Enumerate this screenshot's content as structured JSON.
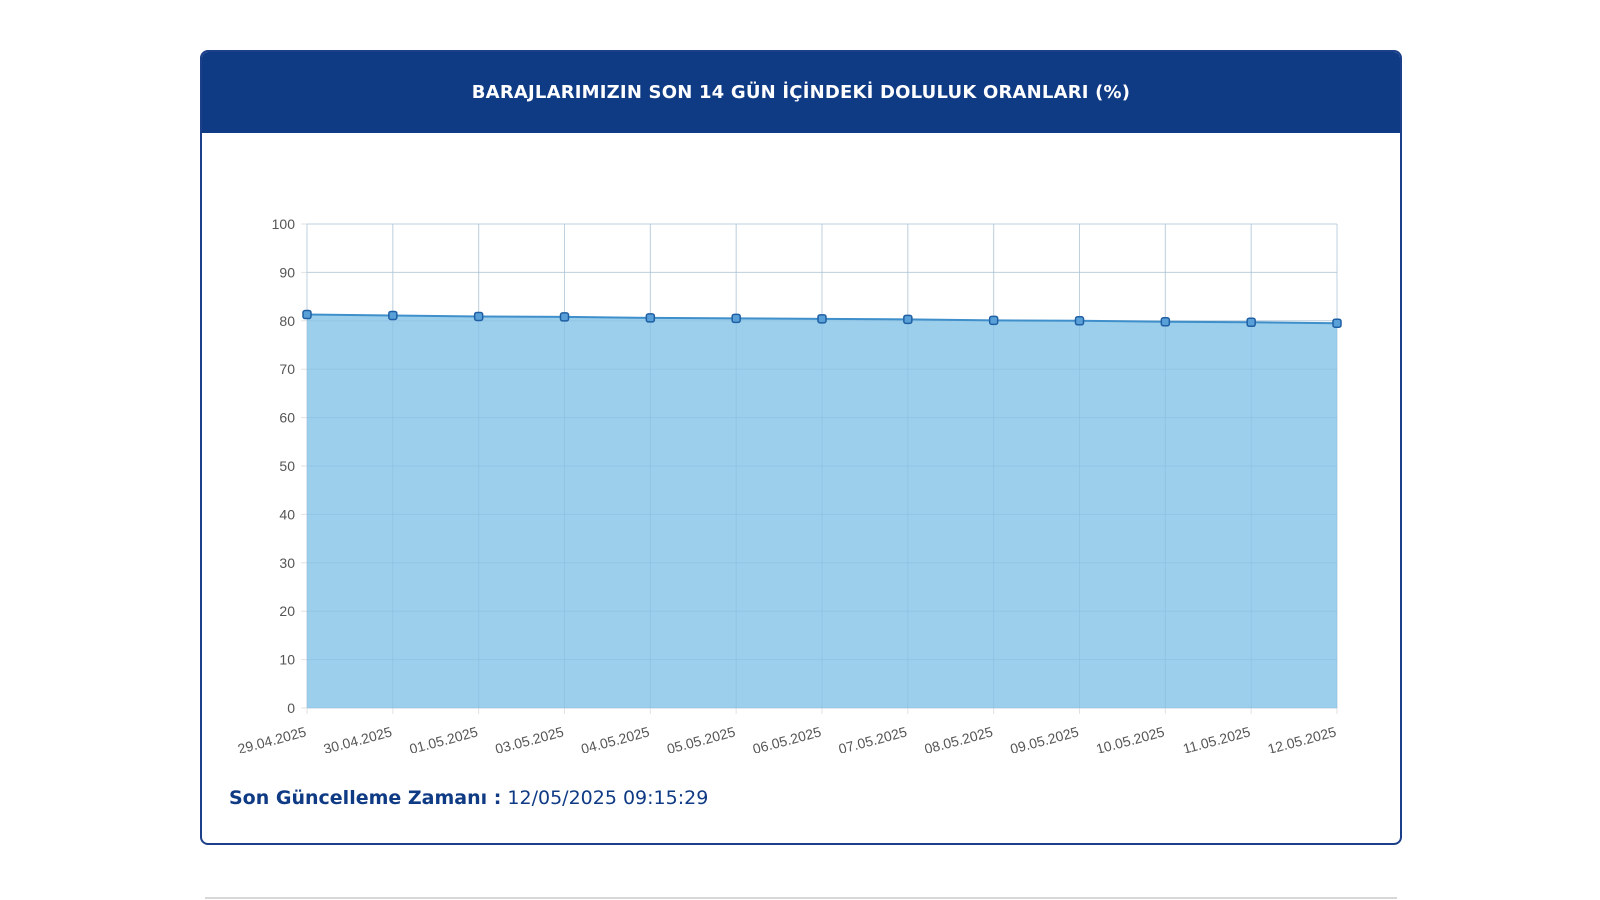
{
  "card": {
    "title": "BARAJLARIMIZIN SON 14 GÜN İÇİNDEKİ DOLULUK ORANLARI (%)",
    "update_label": "Son Güncelleme Zamanı :",
    "update_value": "12/05/2025 09:15:29"
  },
  "colors": {
    "header_bg": "#0f3a84",
    "area_fill": "#9ccfec",
    "line": "#3f8fcb",
    "marker_fill": "#5aa0d8",
    "marker_stroke": "#1f5fa3",
    "grid": "#e2e2e2",
    "tick_text": "#555555"
  },
  "chart_data": {
    "type": "area",
    "title": "",
    "xlabel": "",
    "ylabel": "",
    "ylim": [
      0,
      100
    ],
    "yticks": [
      "0",
      "10",
      "20",
      "30",
      "40",
      "50",
      "60",
      "70",
      "80",
      "90",
      "100"
    ],
    "categories": [
      "29.04.2025",
      "30.04.2025",
      "01.05.2025",
      "03.05.2025",
      "04.05.2025",
      "05.05.2025",
      "06.05.2025",
      "07.05.2025",
      "08.05.2025",
      "09.05.2025",
      "10.05.2025",
      "11.05.2025",
      "12.05.2025"
    ],
    "values": [
      81.3,
      81.1,
      80.9,
      80.8,
      80.6,
      80.5,
      80.4,
      80.3,
      80.1,
      80.0,
      79.8,
      79.7,
      79.5
    ],
    "grid": true,
    "legend": "none"
  }
}
